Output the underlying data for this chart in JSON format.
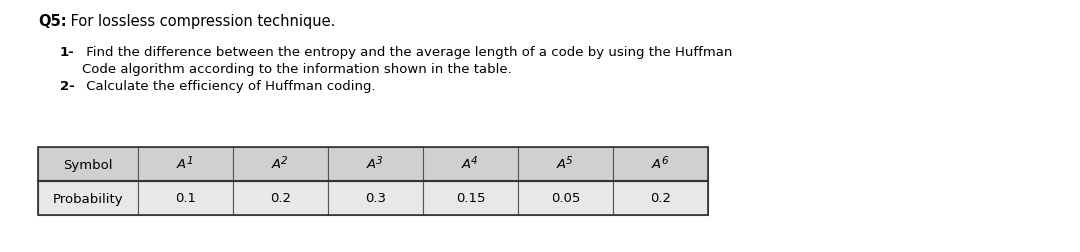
{
  "title_bold": "Q5:",
  "title_rest": " For lossless compression technique.",
  "item1_number": "1-",
  "item1_line1": " Find the difference between the entropy and the average length of a code by using the Huffman",
  "item1_line2": "Code algorithm according to the information shown in the table.",
  "item2_number": "2-",
  "item2_line1": " Calculate the efficiency of Huffman coding.",
  "table_headers": [
    "Symbol",
    "A1",
    "A2",
    "A3",
    "A4",
    "A5",
    "A6"
  ],
  "table_header_subs": [
    "",
    "1",
    "2",
    "3",
    "4",
    "5",
    "6"
  ],
  "table_row_label": "Probability",
  "table_values": [
    "0.1",
    "0.2",
    "0.3",
    "0.15",
    "0.05",
    "0.2"
  ],
  "bg_color": "#ffffff",
  "table_header_bg": "#d0d0d0",
  "table_data_bg": "#e8e8e8",
  "table_border_color": "#555555",
  "text_color": "#000000",
  "font_size_title": 10.5,
  "font_size_body": 9.5,
  "font_size_table": 9.5
}
